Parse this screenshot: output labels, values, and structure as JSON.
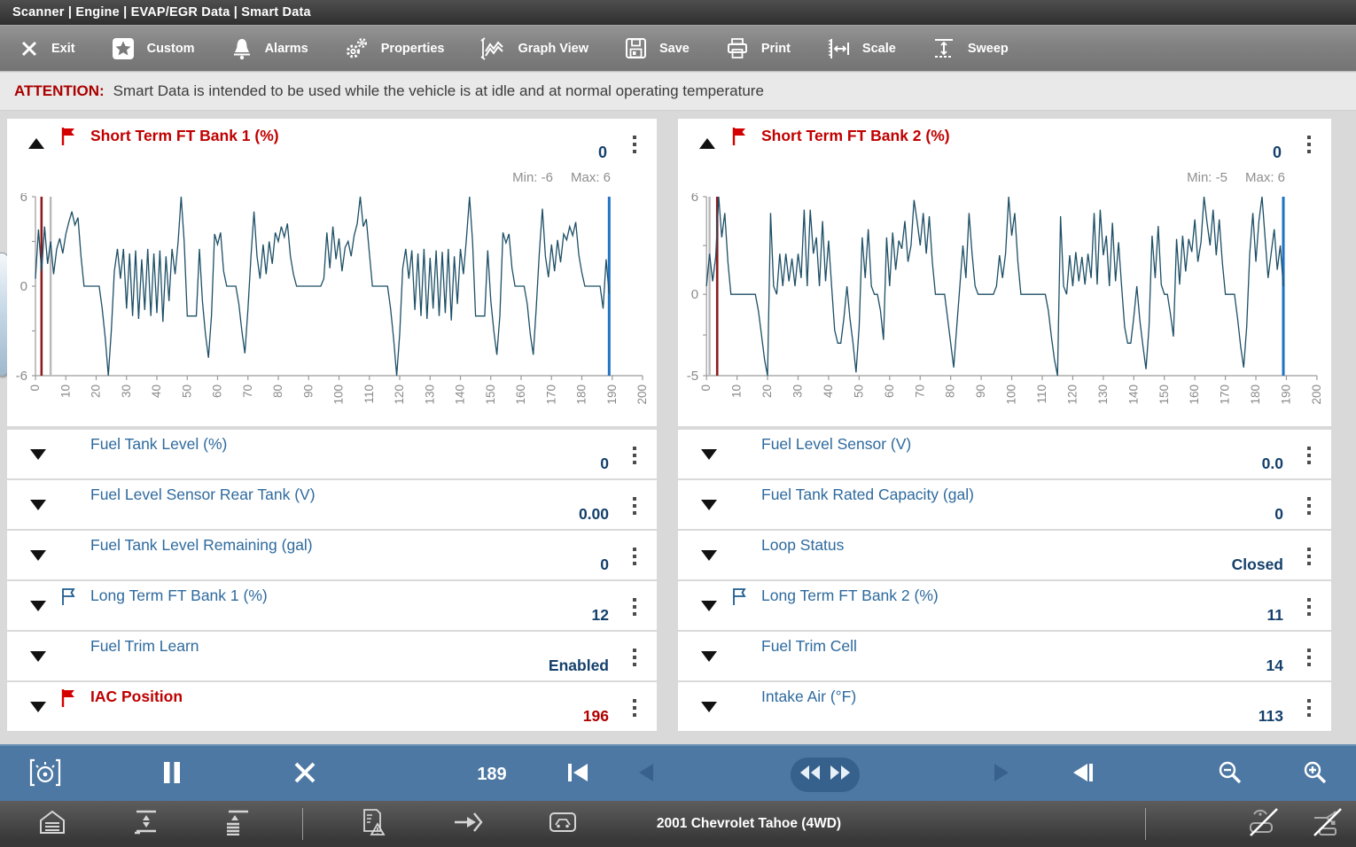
{
  "breadcrumb": "Scanner | Engine | EVAP/EGR Data | Smart Data",
  "toolbar": {
    "items": [
      {
        "label": "Exit"
      },
      {
        "label": "Custom"
      },
      {
        "label": "Alarms"
      },
      {
        "label": "Properties"
      },
      {
        "label": "Graph View"
      },
      {
        "label": "Save"
      },
      {
        "label": "Print"
      },
      {
        "label": "Scale"
      },
      {
        "label": "Sweep"
      }
    ]
  },
  "attention": {
    "prefix": "ATTENTION:",
    "message": "Smart Data is intended to be used while the vehicle is at idle and at normal operating temperature"
  },
  "graphs": [
    {
      "title": "Short Term FT Bank 1 (%)",
      "value": "0",
      "min_label": "Min: -6",
      "max_label": "Max: 6",
      "flagged": true
    },
    {
      "title": "Short Term FT Bank 2 (%)",
      "value": "0",
      "min_label": "Min: -5",
      "max_label": "Max: 6",
      "flagged": true
    }
  ],
  "rows_left": [
    {
      "label": "Fuel Tank Level (%)",
      "value": "0",
      "flag": null
    },
    {
      "label": "Fuel Level Sensor Rear Tank (V)",
      "value": "0.00",
      "flag": null
    },
    {
      "label": "Fuel Tank Level Remaining (gal)",
      "value": "0",
      "flag": null
    },
    {
      "label": "Long Term FT Bank 1 (%)",
      "value": "12",
      "flag": "outline"
    },
    {
      "label": "Fuel Trim Learn",
      "value": "Enabled",
      "flag": null
    },
    {
      "label": "IAC Position",
      "value": "196",
      "flag": "red",
      "alert": true
    }
  ],
  "rows_right": [
    {
      "label": "Fuel Level Sensor (V)",
      "value": "0.0",
      "flag": null
    },
    {
      "label": "Fuel Tank Rated Capacity (gal)",
      "value": "0",
      "flag": null
    },
    {
      "label": "Loop Status",
      "value": "Closed",
      "flag": null
    },
    {
      "label": "Long Term FT Bank 2 (%)",
      "value": "11",
      "flag": "outline"
    },
    {
      "label": "Fuel Trim Cell",
      "value": "14",
      "flag": null
    },
    {
      "label": "Intake Air (°F)",
      "value": "113",
      "flag": null
    }
  ],
  "playback": {
    "frame": "189"
  },
  "status_bar": {
    "vehicle": "2001 Chevrolet Tahoe (4WD)"
  },
  "colors": {
    "alert_red": "#c00000",
    "label_blue": "#2e6a9e",
    "value_navy": "#14406b",
    "trace": "#1d4f66",
    "cursor_blue": "#2173c4",
    "marker_red": "#8e1b1b",
    "marker_gray": "#b9b9b9",
    "playback_bg": "#4d78a3"
  },
  "chart_data": [
    {
      "type": "line",
      "title": "Short Term FT Bank 1 (%)",
      "xlabel": "",
      "ylabel": "",
      "x_range": [
        0,
        200
      ],
      "x_tick_step": 10,
      "ylim": [
        -6,
        6
      ],
      "y_axis_labels": [
        6,
        0,
        -6
      ],
      "grid": false,
      "legend": "none",
      "current_value": 0,
      "min": -6,
      "max": 6,
      "cursor_x": 189,
      "marker_red_x": 2,
      "marker_gray_x": 5,
      "values": [
        0.5,
        3.8,
        1.0,
        4.0,
        1.5,
        3.0,
        0.8,
        2.5,
        3.2,
        2.2,
        3.5,
        4.3,
        5.0,
        4.1,
        4.6,
        2.0,
        0,
        0,
        0,
        0,
        0,
        0,
        -1.5,
        -3.5,
        -6.0,
        -3.0,
        1.0,
        2.5,
        0.5,
        2.5,
        -1.5,
        2.2,
        -2.0,
        2.4,
        -2.2,
        1.8,
        -1.6,
        2.5,
        -2.0,
        2.2,
        -1.8,
        2.4,
        -2.4,
        2.0,
        -1.0,
        2.5,
        0.8,
        3.0,
        6.0,
        3.0,
        -2.0,
        -2.0,
        -2.0,
        -2.0,
        2.5,
        -1.0,
        -3.2,
        -4.8,
        -2.0,
        3.5,
        2.8,
        3.6,
        1.0,
        0,
        0,
        0,
        0,
        -1.2,
        -3.0,
        -4.5,
        -1.5,
        2.0,
        5.0,
        2.0,
        0.5,
        2.8,
        0.8,
        3.0,
        1.5,
        3.6,
        3.0,
        4.0,
        3.3,
        4.2,
        2.0,
        0.8,
        0,
        0,
        0,
        0,
        0,
        0,
        0,
        0,
        0,
        0.5,
        3.6,
        1.2,
        4.0,
        1.8,
        3.2,
        1.0,
        2.6,
        3.0,
        2.0,
        3.4,
        4.2,
        6.0,
        4.0,
        4.5,
        2.2,
        0,
        0,
        0,
        0,
        0,
        0,
        -1.5,
        -3.5,
        -6.0,
        -3.2,
        1.2,
        2.5,
        0.5,
        2.4,
        -1.6,
        2.2,
        -2.0,
        2.5,
        -2.2,
        1.9,
        -1.5,
        2.4,
        -2.0,
        2.3,
        -1.8,
        2.5,
        -2.3,
        2.0,
        -1.2,
        2.5,
        0.8,
        3.2,
        6.0,
        3.0,
        -2.0,
        -2.0,
        -2.0,
        -2.0,
        2.4,
        -1.0,
        -3.0,
        -4.6,
        -2.0,
        3.6,
        2.9,
        3.5,
        1.2,
        0,
        0,
        0,
        0,
        -1.2,
        -3.2,
        -4.6,
        -1.4,
        2.2,
        5.2,
        2.0,
        0.6,
        2.8,
        1.0,
        3.1,
        1.6,
        3.5,
        3.1,
        4.0,
        3.4,
        4.3,
        2.1,
        0.9,
        0,
        0,
        0,
        0,
        0,
        0,
        -1.5,
        1.8,
        -0.5
      ]
    },
    {
      "type": "line",
      "title": "Short Term FT Bank 2 (%)",
      "xlabel": "",
      "ylabel": "",
      "x_range": [
        0,
        200
      ],
      "x_tick_step": 10,
      "ylim": [
        -5,
        6
      ],
      "y_axis_labels": [
        6,
        0,
        -5
      ],
      "grid": false,
      "legend": "none",
      "current_value": 0,
      "min": -5,
      "max": 6,
      "cursor_x": 189,
      "marker_red_x": 3.5,
      "marker_gray_x": 1,
      "values": [
        0.5,
        2.5,
        0.8,
        2.3,
        6.0,
        3.5,
        5.0,
        2.0,
        0,
        0,
        0,
        0,
        0,
        0,
        0,
        0,
        0,
        -1.0,
        -2.5,
        -4.0,
        -5.0,
        5.0,
        0.5,
        0,
        2.5,
        0.5,
        2.5,
        0.8,
        2.2,
        0.5,
        2.5,
        1.0,
        5.2,
        0.5,
        5.2,
        2.5,
        3.5,
        0.5,
        4.5,
        0.8,
        3.3,
        0.5,
        -2.2,
        -3.0,
        -3.0,
        -1.5,
        0.5,
        -1.5,
        -3.0,
        -4.8,
        -2.0,
        3.5,
        1.0,
        4.0,
        0.5,
        0,
        0,
        -1.0,
        -2.8,
        3.5,
        0.5,
        3.8,
        1.5,
        3.3,
        2.8,
        4.5,
        2.0,
        3.0,
        5.8,
        4.5,
        3.0,
        5.0,
        2.5,
        4.8,
        2.0,
        0,
        0,
        0,
        0,
        -1.5,
        -3.0,
        -4.5,
        -2.0,
        0.5,
        3.0,
        1.0,
        5.0,
        2.5,
        0.5,
        0,
        0,
        0,
        0,
        0,
        0,
        0.5,
        2.4,
        1.0,
        2.5,
        6.0,
        3.6,
        5.0,
        2.0,
        0,
        0,
        0,
        0,
        0,
        0,
        0,
        0,
        0,
        -1.0,
        -2.6,
        -4.0,
        -5.0,
        4.8,
        0.5,
        0,
        2.4,
        0.5,
        2.6,
        0.8,
        2.3,
        0.6,
        2.5,
        1.0,
        5.0,
        0.6,
        5.2,
        2.4,
        3.6,
        0.5,
        4.4,
        0.8,
        3.2,
        0.5,
        -2.0,
        -3.0,
        -3.0,
        -1.4,
        0.5,
        -1.6,
        -3.2,
        -4.6,
        -2.0,
        3.6,
        1.0,
        4.2,
        0.6,
        0,
        0,
        -1.2,
        -2.6,
        3.4,
        0.6,
        3.6,
        1.4,
        3.4,
        2.6,
        4.6,
        2.0,
        3.2,
        6.0,
        4.4,
        3.0,
        5.2,
        2.4,
        4.6,
        2.0,
        0,
        0,
        0,
        0,
        -1.5,
        -3.2,
        -4.5,
        -2.0,
        2.5,
        5.0,
        2.0,
        4.5,
        6.0,
        3.5,
        1.0,
        2.5,
        4.0,
        1.5,
        3.0,
        0.5
      ]
    }
  ]
}
